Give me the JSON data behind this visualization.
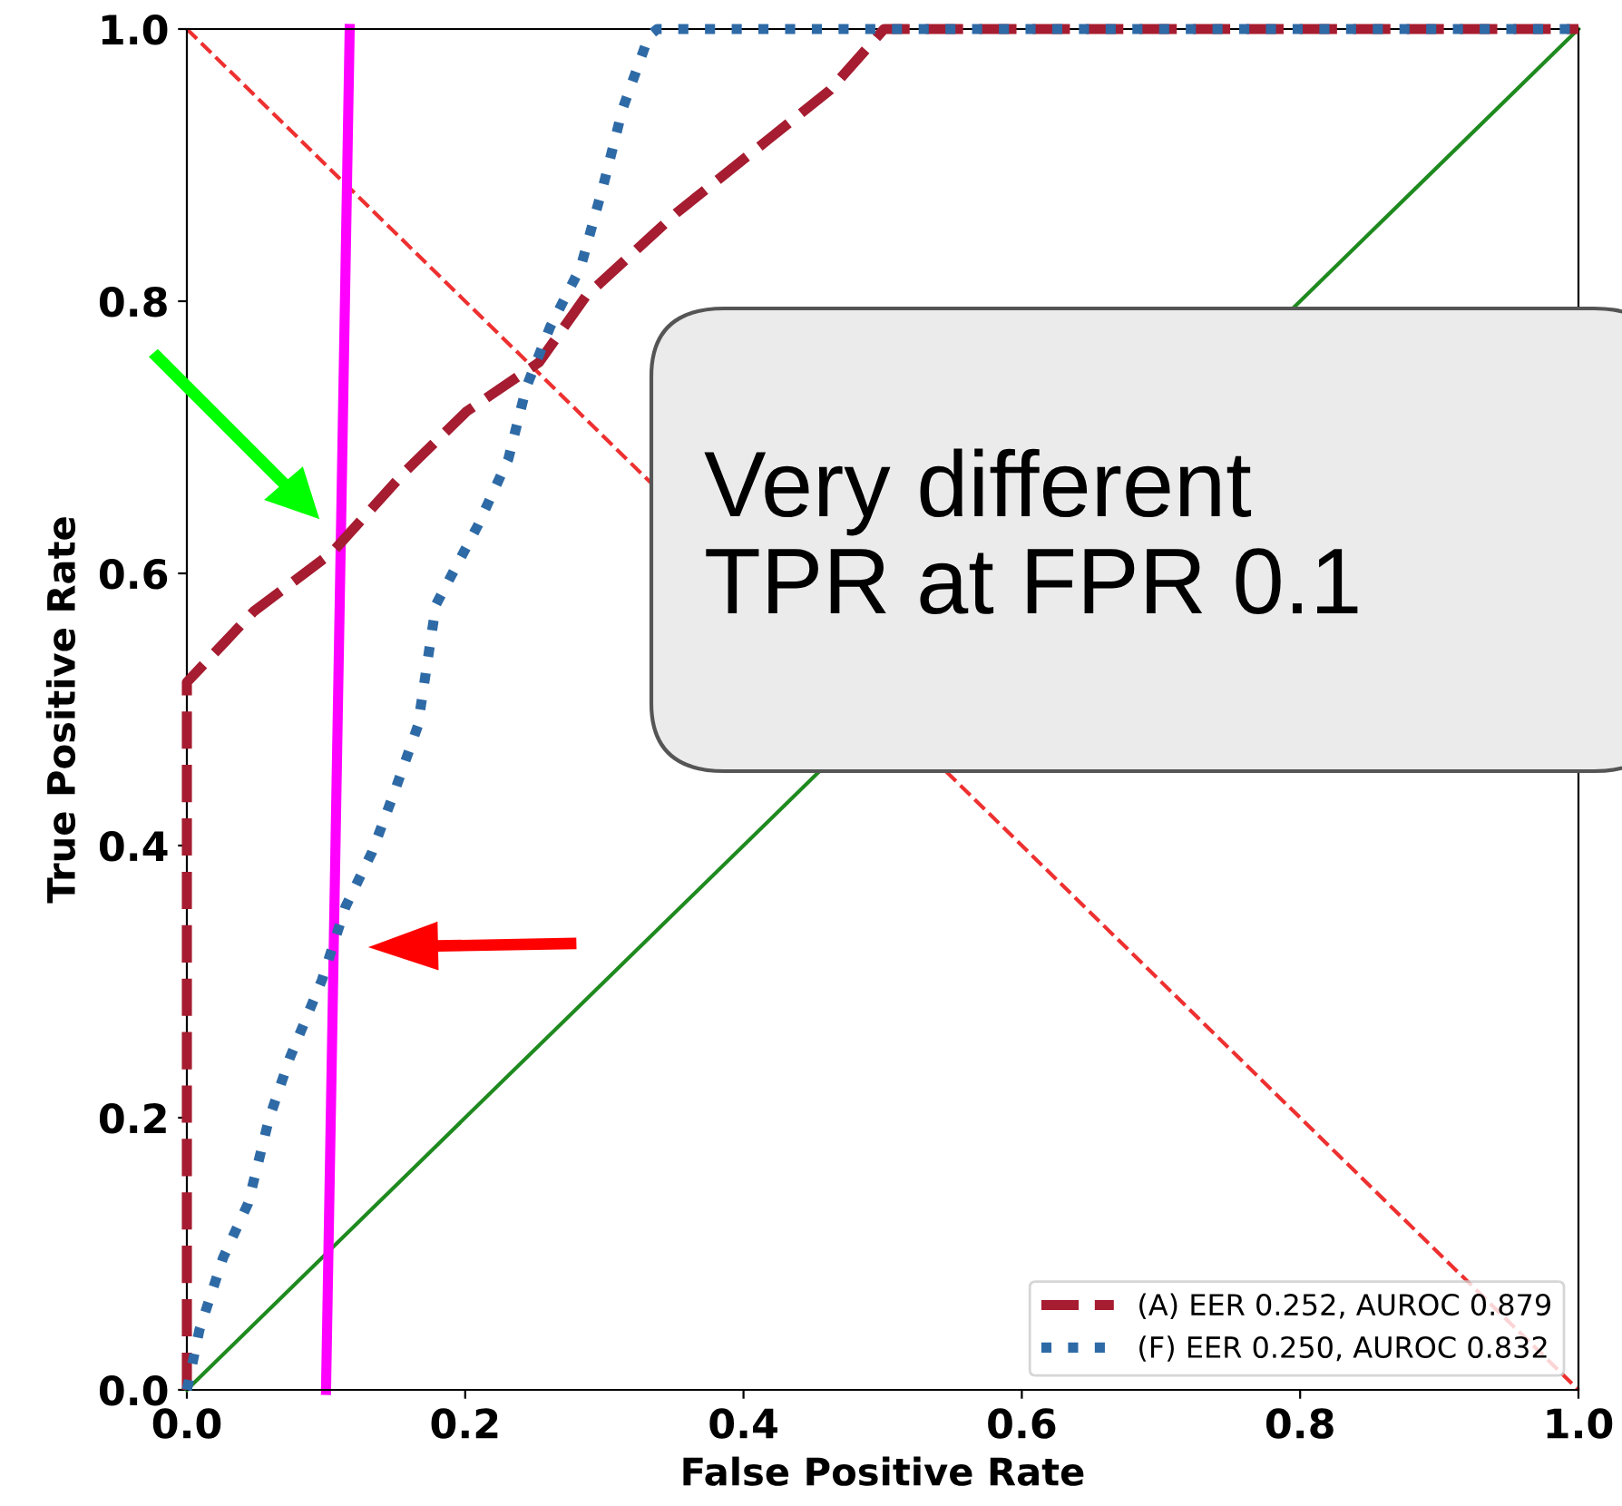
{
  "chart_data": {
    "type": "line",
    "xlabel": "False Positive Rate",
    "ylabel": "True Positive Rate",
    "xlim": [
      0.0,
      1.0
    ],
    "ylim": [
      0.0,
      1.0
    ],
    "xticks": [
      {
        "value": 0,
        "label": "0.0"
      },
      0.2,
      0.4,
      0.6,
      0.8,
      {
        "value": 1,
        "label": "1.0"
      }
    ],
    "yticks": [
      {
        "value": 0,
        "label": "0.0"
      },
      0.2,
      0.4,
      0.6,
      0.8,
      {
        "value": 1,
        "label": "1.0"
      }
    ],
    "grid": false,
    "legend": "bottom right",
    "marker": "none",
    "series": [
      {
        "name": "(A) EER 0.252, AUROC 0.879",
        "color": "#a61c30",
        "line_style": "dashed",
        "x": [
          0,
          0,
          0.048,
          0.104,
          0.157,
          0.201,
          0.253,
          0.287,
          0.352,
          0.418,
          0.462,
          0.501,
          1.0
        ],
        "values": [
          0,
          0.52,
          0.572,
          0.615,
          0.675,
          0.719,
          0.755,
          0.804,
          0.865,
          0.919,
          0.955,
          1.0,
          1.0
        ]
      },
      {
        "name": "(F) EER 0.250, AUROC 0.832",
        "color": "#2e6aa6",
        "line_style": "dotted",
        "x": [
          0,
          0.009,
          0.026,
          0.044,
          0.059,
          0.074,
          0.097,
          0.114,
          0.133,
          0.149,
          0.166,
          0.179,
          0.209,
          0.231,
          0.244,
          0.261,
          0.283,
          0.3,
          0.313,
          0.332,
          0.338,
          1.0
        ],
        "values": [
          0,
          0.044,
          0.097,
          0.137,
          0.199,
          0.244,
          0.301,
          0.355,
          0.395,
          0.439,
          0.488,
          0.577,
          0.635,
          0.684,
          0.737,
          0.781,
          0.825,
          0.888,
          0.941,
          0.995,
          1.0,
          1.0
        ]
      },
      {
        "color": "#1f8a1f",
        "line_style": "solid",
        "x": [
          0,
          1
        ],
        "values": [
          0,
          1
        ]
      },
      {
        "color": "#ee3030",
        "line_style": "dashed",
        "x": [
          0,
          1
        ],
        "values": [
          1,
          0
        ]
      },
      {
        "color": "#ff00ff",
        "line_style": "solid",
        "x": [
          0.1,
          0.117
        ],
        "values": [
          0,
          1
        ]
      }
    ],
    "annotations": [
      "Very different\nTPR at FPR 0.1"
    ]
  }
}
